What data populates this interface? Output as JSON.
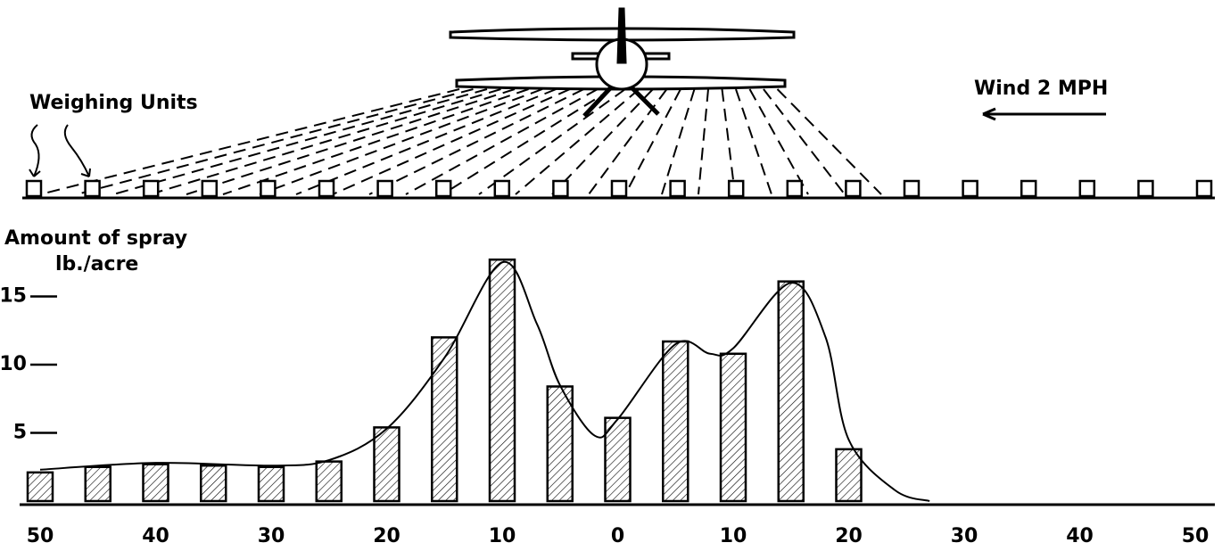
{
  "chart_data": {
    "type": "bar",
    "y_label": [
      "Amount of spray",
      "lb./acre"
    ],
    "annotations": [
      "Weighing Units",
      "Wind 2 MPH"
    ],
    "x": [
      -50,
      -45,
      -40,
      -35,
      -30,
      -25,
      -20,
      -15,
      -10,
      -5,
      0,
      5,
      10,
      15,
      20
    ],
    "values": [
      2.1,
      2.5,
      2.7,
      2.6,
      2.5,
      2.9,
      5.4,
      12.0,
      17.7,
      8.4,
      6.1,
      11.7,
      10.8,
      16.1,
      3.8
    ],
    "color": "#000000",
    "curve": {
      "x": [
        -50,
        -40,
        -30,
        -25,
        -20,
        -15,
        -10,
        -7,
        -5,
        -2,
        0,
        5,
        8,
        10,
        15,
        18,
        20,
        24,
        27
      ],
      "values": [
        2.3,
        2.8,
        2.6,
        3.0,
        5.3,
        10.5,
        17.5,
        13.0,
        8.5,
        4.8,
        6.0,
        11.5,
        10.8,
        11.2,
        16.0,
        12.0,
        4.5,
        0.8,
        0
      ]
    },
    "xlim": [
      -50,
      50
    ],
    "xticks": [
      {
        "value": -50,
        "label": "50"
      },
      {
        "value": -40,
        "label": "40"
      },
      {
        "value": -30,
        "label": "30"
      },
      {
        "value": -20,
        "label": "20"
      },
      {
        "value": -10,
        "label": "10"
      },
      0,
      10,
      20,
      30,
      40,
      50
    ],
    "ylim": [
      0,
      18
    ],
    "yticks": [
      5,
      10,
      15
    ]
  }
}
